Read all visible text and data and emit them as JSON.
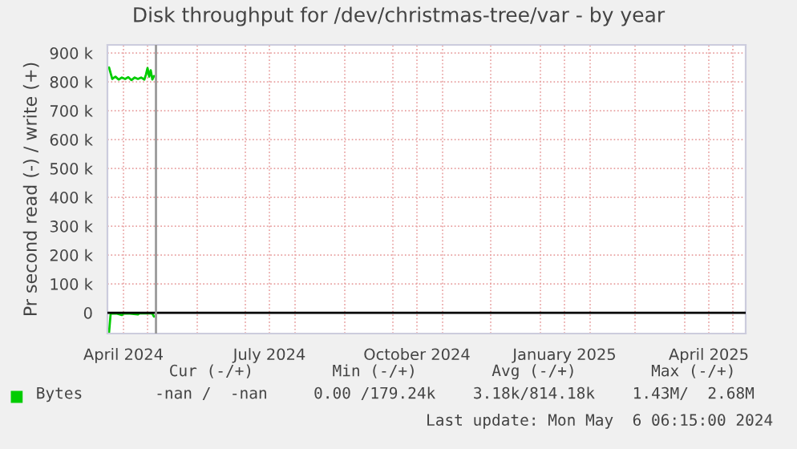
{
  "chart_data": {
    "type": "line",
    "title": "Disk throughput for /dev/christmas-tree/var - by year",
    "ylabel": "Pr second read (-) / write (+)",
    "xlim": [
      "2024-04-06",
      "2025-05-09"
    ],
    "xticks": [
      {
        "value": "2024-05-01",
        "label": null
      },
      {
        "value": "2024-06-01",
        "label": null
      },
      {
        "value": "2024-07-01",
        "label": null
      },
      {
        "value": "2024-08-01",
        "label": null
      },
      {
        "value": "2024-09-01",
        "label": null
      },
      {
        "value": "2024-10-01",
        "label": null
      },
      {
        "value": "2024-11-01",
        "label": null
      },
      {
        "value": "2024-12-01",
        "label": null
      },
      {
        "value": "2025-01-01",
        "label": null
      },
      {
        "value": "2025-02-01",
        "label": null
      },
      {
        "value": "2025-03-01",
        "label": null
      },
      {
        "value": "2025-04-01",
        "label": null
      },
      {
        "value": "2025-05-01",
        "label": null
      },
      {
        "value": "2024-04-16",
        "label": "April 2024"
      },
      {
        "value": "2024-07-16",
        "label": "July 2024"
      },
      {
        "value": "2024-10-16",
        "label": "October 2024"
      },
      {
        "value": "2025-01-16",
        "label": "January 2025"
      },
      {
        "value": "2025-04-16",
        "label": "April 2025"
      }
    ],
    "ylim": [
      -72000,
      928000
    ],
    "yticks": [
      0,
      {
        "value": 100000,
        "label": "100 k"
      },
      {
        "value": 200000,
        "label": "200 k"
      },
      {
        "value": 300000,
        "label": "300 k"
      },
      {
        "value": 400000,
        "label": "400 k"
      },
      {
        "value": 500000,
        "label": "500 k"
      },
      {
        "value": 600000,
        "label": "600 k"
      },
      {
        "value": 700000,
        "label": "700 k"
      },
      {
        "value": 800000,
        "label": "800 k"
      },
      {
        "value": 900000,
        "label": "900 k"
      }
    ],
    "grid": true,
    "legend": "bottom",
    "series": [
      {
        "name": "Bytes",
        "color": "#00cc00",
        "x": [
          "2024-04-07",
          "2024-04-08",
          "2024-04-09",
          "2024-04-11",
          "2024-04-13",
          "2024-04-15",
          "2024-04-17",
          "2024-04-19",
          "2024-04-21",
          "2024-04-23",
          "2024-04-25",
          "2024-04-27",
          "2024-04-29",
          "2024-04-30",
          "2024-05-01",
          "2024-05-02",
          "2024-05-03",
          "2024-05-04",
          "2024-05-05"
        ],
        "values": [
          850000,
          830000,
          810000,
          818000,
          808000,
          815000,
          810000,
          816000,
          806000,
          815000,
          810000,
          815000,
          808000,
          825000,
          848000,
          818000,
          840000,
          808000,
          820000
        ]
      },
      {
        "color": "#00cc00",
        "x": [
          "2024-04-07",
          "2024-04-08",
          "2024-04-10",
          "2024-04-12",
          "2024-04-15",
          "2024-04-16",
          "2024-04-20",
          "2024-04-25",
          "2024-04-26",
          "2024-05-03",
          "2024-05-04",
          "2024-05-05"
        ],
        "values": [
          -68000,
          -3000,
          -2000,
          -3000,
          -8000,
          -2000,
          -3000,
          -6000,
          -2000,
          -2000,
          -3000,
          -13000
        ]
      }
    ],
    "ref_lines": [
      {
        "axis": "y",
        "value": 0,
        "color": "#000000"
      },
      {
        "axis": "x",
        "value": "2024-05-06T06:15",
        "color": "#999999"
      }
    ],
    "annotations": [
      "Cur (-/+)",
      "Min (-/+)",
      "Avg (-/+)",
      "Max (-/+)",
      "-nan /  -nan",
      "0.00 /179.24k",
      "3.18k/814.18k",
      "1.43M/  2.68M",
      "Last update: Mon May  6 06:15:00 2024"
    ]
  }
}
